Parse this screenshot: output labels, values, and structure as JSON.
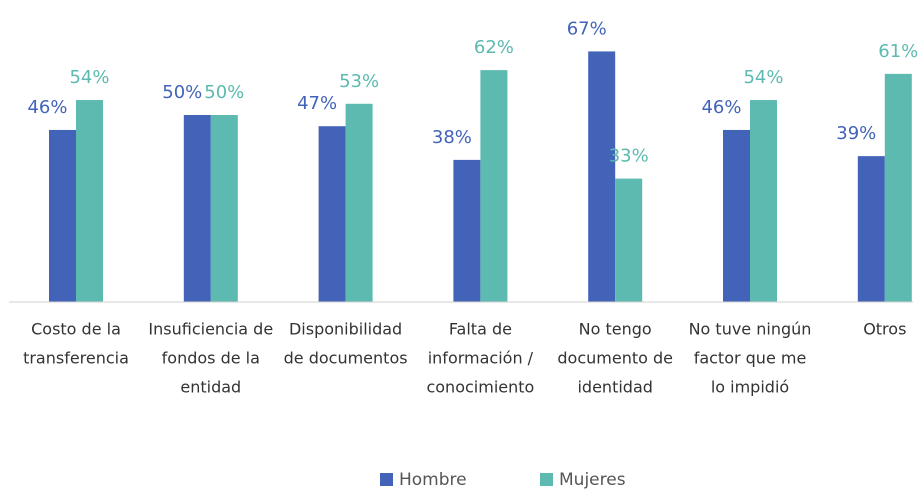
{
  "chart_data": {
    "type": "bar",
    "categories": [
      [
        "Costo de la",
        "transferencia"
      ],
      [
        "Insuficiencia de",
        "fondos de la",
        "entidad"
      ],
      [
        "Disponibilidad",
        "de documentos"
      ],
      [
        "Falta de",
        "información /",
        "conocimiento"
      ],
      [
        "No tengo",
        "documento de",
        "identidad"
      ],
      [
        "No tuve ningún",
        "factor que me",
        "lo impidió"
      ],
      [
        "Otros"
      ]
    ],
    "series": [
      {
        "name": "Hombre",
        "color": "#4263b8",
        "values": [
          46,
          50,
          47,
          38,
          67,
          46,
          39
        ],
        "value_labels": [
          "46%",
          "50%",
          "47%",
          "38%",
          "67%",
          "46%",
          "39%"
        ]
      },
      {
        "name": "Mujeres",
        "color": "#5cbab0",
        "values": [
          54,
          50,
          53,
          62,
          33,
          54,
          61
        ],
        "value_labels": [
          "54%",
          "50%",
          "53%",
          "62%",
          "33%",
          "54%",
          "61%"
        ]
      }
    ],
    "ylim": [
      0,
      70
    ],
    "legend": "bottom"
  }
}
